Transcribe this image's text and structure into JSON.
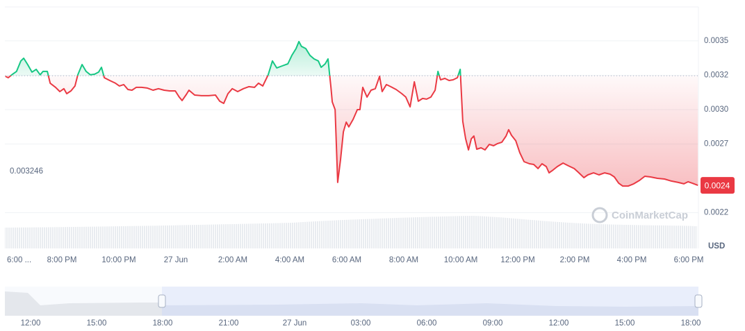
{
  "chart_data": {
    "type": "line",
    "currency": "USD",
    "watermark": "CoinMarketCap",
    "color_up": "#16c784",
    "color_down": "#ea3943",
    "baseline": 0.003246,
    "current_price": {
      "value": 0.002449,
      "label": "0.0024"
    },
    "ylim": [
      0.00199,
      0.003747
    ],
    "yticks": [
      {
        "value": 0.0035,
        "label": "0.0035"
      },
      {
        "value": 0.00325,
        "label": "0.0032"
      },
      {
        "value": 0.003,
        "label": "0.0030"
      },
      {
        "value": 0.00275,
        "label": "0.0027"
      },
      {
        "value": 0.00225,
        "label": "0.0022"
      }
    ],
    "xlim": [
      0,
      24.34
    ],
    "xticks": [
      {
        "value": 0,
        "label": "6:00 ..."
      },
      {
        "value": 2,
        "label": "8:00 PM"
      },
      {
        "value": 4,
        "label": "10:00 PM"
      },
      {
        "value": 6,
        "label": "27 Jun"
      },
      {
        "value": 8,
        "label": "2:00 AM"
      },
      {
        "value": 10,
        "label": "4:00 AM"
      },
      {
        "value": 12,
        "label": "6:00 AM"
      },
      {
        "value": 14,
        "label": "8:00 AM"
      },
      {
        "value": 16,
        "label": "10:00 AM"
      },
      {
        "value": 18,
        "label": "12:00 PM"
      },
      {
        "value": 20,
        "label": "2:00 PM"
      },
      {
        "value": 22,
        "label": "4:00 PM"
      },
      {
        "value": 24,
        "label": "6:00 PM"
      }
    ],
    "navigator_ticks": [
      "12:00",
      "15:00",
      "18:00",
      "21:00",
      "27 Jun",
      "03:00",
      "06:00",
      "09:00",
      "12:00",
      "15:00",
      "18:00"
    ],
    "x": [
      0.02,
      0.12,
      0.27,
      0.41,
      0.56,
      0.66,
      0.8,
      0.95,
      1.1,
      1.24,
      1.34,
      1.49,
      1.59,
      1.78,
      1.93,
      2.07,
      2.17,
      2.32,
      2.46,
      2.56,
      2.71,
      2.85,
      3.0,
      3.15,
      3.29,
      3.39,
      3.49,
      3.68,
      3.88,
      4.02,
      4.17,
      4.32,
      4.46,
      4.61,
      4.8,
      5.0,
      5.2,
      5.39,
      5.59,
      5.78,
      5.98,
      6.12,
      6.22,
      6.37,
      6.46,
      6.66,
      6.9,
      7.15,
      7.39,
      7.54,
      7.68,
      7.83,
      7.98,
      8.17,
      8.37,
      8.56,
      8.76,
      8.9,
      9.05,
      9.24,
      9.39,
      9.54,
      9.73,
      9.93,
      10.07,
      10.22,
      10.32,
      10.41,
      10.56,
      10.71,
      10.85,
      11.0,
      11.1,
      11.24,
      11.34,
      11.39,
      11.44,
      11.49,
      11.59,
      11.68,
      11.78,
      11.88,
      11.98,
      12.07,
      12.22,
      12.37,
      12.46,
      12.56,
      12.71,
      12.85,
      13.0,
      13.15,
      13.24,
      13.39,
      13.54,
      13.73,
      13.93,
      14.07,
      14.22,
      14.37,
      14.51,
      14.66,
      14.8,
      14.95,
      15.1,
      15.2,
      15.29,
      15.44,
      15.59,
      15.73,
      15.88,
      15.98,
      16.07,
      16.17,
      16.27,
      16.37,
      16.46,
      16.56,
      16.71,
      16.85,
      17.0,
      17.15,
      17.29,
      17.44,
      17.59,
      17.68,
      17.78,
      17.93,
      18.07,
      18.22,
      18.41,
      18.56,
      18.71,
      18.85,
      19.0,
      19.1,
      19.24,
      19.39,
      19.59,
      19.78,
      19.98,
      20.12,
      20.32,
      20.46,
      20.66,
      20.85,
      21.05,
      21.24,
      21.39,
      21.54,
      21.68,
      21.88,
      22.07,
      22.27,
      22.46,
      22.66,
      22.9,
      23.15,
      23.39,
      23.63,
      23.83,
      23.98,
      24.12,
      24.32
    ],
    "values": [
      0.003242,
      0.003232,
      0.003258,
      0.003278,
      0.003354,
      0.003374,
      0.003328,
      0.003273,
      0.003293,
      0.003253,
      0.003278,
      0.003278,
      0.003192,
      0.003162,
      0.003131,
      0.003152,
      0.003116,
      0.003136,
      0.003172,
      0.003253,
      0.003328,
      0.003278,
      0.003253,
      0.003258,
      0.003273,
      0.003308,
      0.003232,
      0.003212,
      0.003192,
      0.003172,
      0.003182,
      0.003146,
      0.003141,
      0.003162,
      0.003162,
      0.003157,
      0.003141,
      0.003152,
      0.003141,
      0.003136,
      0.003136,
      0.003091,
      0.003066,
      0.003111,
      0.003141,
      0.003106,
      0.003101,
      0.003101,
      0.003106,
      0.003061,
      0.003045,
      0.003116,
      0.003152,
      0.003131,
      0.003152,
      0.003167,
      0.003162,
      0.003192,
      0.003172,
      0.003253,
      0.003354,
      0.003303,
      0.003318,
      0.003333,
      0.003394,
      0.003444,
      0.003495,
      0.00346,
      0.003444,
      0.003394,
      0.003369,
      0.003354,
      0.003308,
      0.003333,
      0.003369,
      0.003268,
      0.003167,
      0.003056,
      0.003,
      0.00247,
      0.002636,
      0.002838,
      0.002909,
      0.002874,
      0.002929,
      0.003,
      0.003,
      0.003162,
      0.003091,
      0.003141,
      0.003152,
      0.003242,
      0.003131,
      0.003182,
      0.003167,
      0.003146,
      0.003116,
      0.003091,
      0.00302,
      0.003202,
      0.003061,
      0.003081,
      0.003076,
      0.003091,
      0.003141,
      0.003278,
      0.003217,
      0.003227,
      0.003212,
      0.003217,
      0.003232,
      0.003293,
      0.002914,
      0.002788,
      0.002707,
      0.002788,
      0.002808,
      0.002712,
      0.002722,
      0.002707,
      0.002747,
      0.002737,
      0.002753,
      0.002763,
      0.002808,
      0.002854,
      0.002813,
      0.002773,
      0.002687,
      0.002621,
      0.002606,
      0.002601,
      0.002571,
      0.002606,
      0.002586,
      0.00254,
      0.002561,
      0.002586,
      0.002611,
      0.002591,
      0.002571,
      0.002545,
      0.002505,
      0.002525,
      0.00254,
      0.002525,
      0.00254,
      0.00253,
      0.00251,
      0.002465,
      0.002444,
      0.002444,
      0.00246,
      0.002485,
      0.002515,
      0.00251,
      0.0025,
      0.002495,
      0.00248,
      0.00247,
      0.00246,
      0.002475,
      0.002465,
      0.002449
    ]
  }
}
